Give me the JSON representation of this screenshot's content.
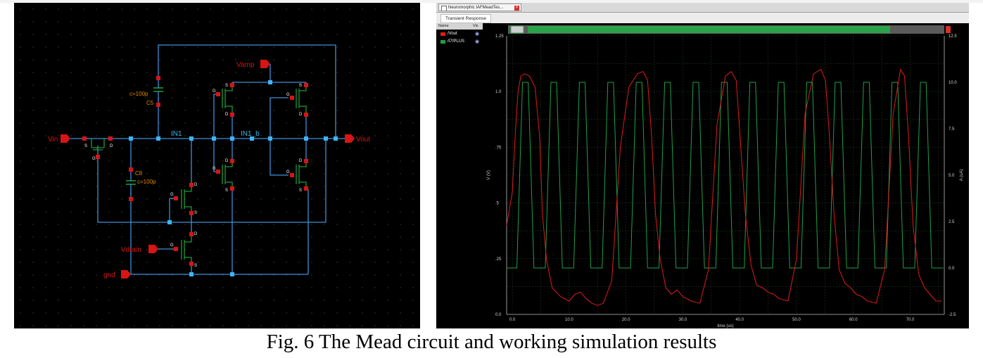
{
  "schematic": {
    "labels": {
      "vin": "Vin",
      "vout": "Vout",
      "vamp": "Vamp",
      "vdrain": "Vdrain",
      "gnd": "gnd",
      "in1": "IN1",
      "in1_b": "IN1_b",
      "c5_value": "c=100p",
      "c5_name": "C5",
      "c8_name": "C8",
      "c8_value": "c=100p"
    },
    "colors": {
      "background": "#000000",
      "wire": "#3f8fd8",
      "pin": "#d81414",
      "mos": "#1f9a3a",
      "cap_text": "#e08a00",
      "net_text": "#35b6e0"
    }
  },
  "simulation": {
    "tab_title": "Neuromorphic IAFMeadTes...",
    "panel_title": "Transient Response",
    "legend_headers": {
      "name": "Name",
      "vis": "Vis"
    },
    "legend": [
      {
        "name": "/Vout",
        "color": "#e01b1b"
      },
      {
        "name": "/I7/PLUS",
        "color": "#1fa04a"
      }
    ],
    "colors": {
      "grid": "#1e3a1e",
      "axis_text": "#d6d6d6"
    }
  },
  "chart_data": {
    "type": "line",
    "xlabel": "time (us)",
    "ylabel": "V (V)",
    "y2label": "A (uA)",
    "xlim": [
      -1,
      76
    ],
    "ylim": [
      0,
      1.25
    ],
    "y2lim": [
      -2.5,
      12.5
    ],
    "x_ticks": [
      "0.0",
      "10.0",
      "20.0",
      "30.0",
      "40.0",
      "50.0",
      "60.0",
      "70.0"
    ],
    "y_ticks": [
      "0.0",
      ".25",
      ".5",
      ".75",
      "1.0",
      "1.25"
    ],
    "y2_ticks": [
      "-2.5",
      "0.0",
      "2.5",
      "5.0",
      "7.5",
      "10.0",
      "12.5"
    ],
    "grid": true,
    "series": [
      {
        "name": "/Vout",
        "axis": "left",
        "color": "#e01b1b",
        "x": [
          -1,
          0,
          0.5,
          1.0,
          1.5,
          2.2,
          3.0,
          4.0,
          4.8,
          5.3,
          6.0,
          7.0,
          8.5,
          10.0,
          11.0,
          12.0,
          13.0,
          14.0,
          15.0,
          16.0,
          17.5,
          19.0,
          20.5,
          22.0,
          23.0,
          23.8,
          24.5,
          25.2,
          26.0,
          27.0,
          28.0,
          29.0,
          30.0,
          31.5,
          33.0,
          34.5,
          36.0,
          37.5,
          38.5,
          39.4,
          40.2,
          41.0,
          42.0,
          43.0,
          44.0,
          45.0,
          46.0,
          47.0,
          48.5,
          50.0,
          51.5,
          53.0,
          54.3,
          55.1,
          55.8,
          56.6,
          57.5,
          58.5,
          59.5,
          60.5,
          61.5,
          62.5,
          64.0,
          65.5,
          67.0,
          68.3,
          69.0,
          69.7,
          70.5,
          71.5,
          72.5,
          73.5,
          74.5,
          75.5
        ],
        "y": [
          0.4,
          0.55,
          0.8,
          1.0,
          1.07,
          1.08,
          1.07,
          1.02,
          0.8,
          0.45,
          0.25,
          0.12,
          0.08,
          0.06,
          0.09,
          0.1,
          0.07,
          0.05,
          0.04,
          0.05,
          0.15,
          0.75,
          1.02,
          1.08,
          1.09,
          1.05,
          0.8,
          0.45,
          0.25,
          0.12,
          0.09,
          0.11,
          0.08,
          0.06,
          0.05,
          0.2,
          0.85,
          1.07,
          1.09,
          1.05,
          0.75,
          0.45,
          0.22,
          0.13,
          0.12,
          0.1,
          0.09,
          0.07,
          0.06,
          0.25,
          0.9,
          1.08,
          1.1,
          1.05,
          0.8,
          0.45,
          0.2,
          0.14,
          0.12,
          0.09,
          0.08,
          0.06,
          0.05,
          0.2,
          0.9,
          1.1,
          1.07,
          0.8,
          0.4,
          0.18,
          0.12,
          0.09,
          0.06,
          0.06
        ]
      },
      {
        "name": "/I7/PLUS",
        "axis": "right",
        "color": "#1fa04a",
        "high": 10.0,
        "low": 0.0,
        "period": 5.0,
        "start": 0.8,
        "rise": 1.0,
        "width": 1.0,
        "fall": 1.0
      }
    ]
  },
  "caption": "Fig. 6 The Mead circuit and working simulation results"
}
